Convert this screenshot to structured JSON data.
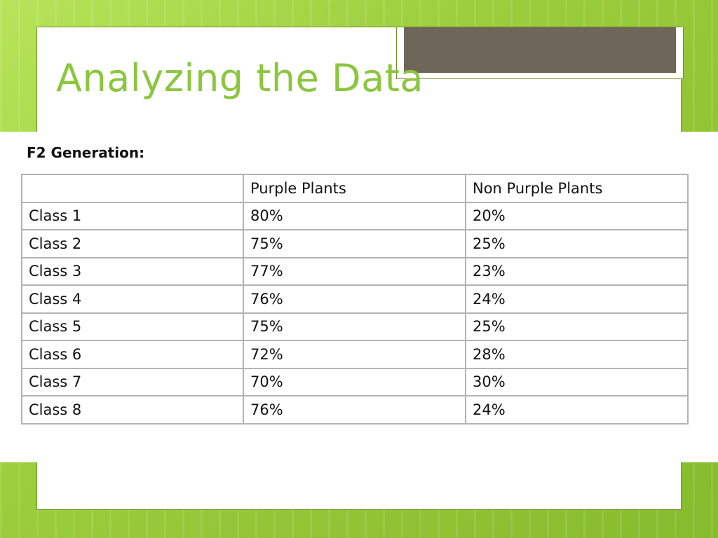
{
  "slide": {
    "title": "Analyzing the Data",
    "accent_color": "#8cc63f",
    "background_color": "#9ccb3c"
  },
  "table": {
    "caption": "F2 Generation:",
    "headers": [
      "",
      "Purple Plants",
      "Non Purple Plants"
    ],
    "rows": [
      [
        "Class 1",
        "80%",
        "20%"
      ],
      [
        "Class 2",
        "75%",
        "25%"
      ],
      [
        "Class 3",
        "77%",
        "23%"
      ],
      [
        "Class 4",
        "76%",
        "24%"
      ],
      [
        "Class 5",
        "75%",
        "25%"
      ],
      [
        "Class 6",
        "72%",
        "28%"
      ],
      [
        "Class 7",
        "70%",
        "30%"
      ],
      [
        "Class 8",
        "76%",
        "24%"
      ]
    ]
  }
}
